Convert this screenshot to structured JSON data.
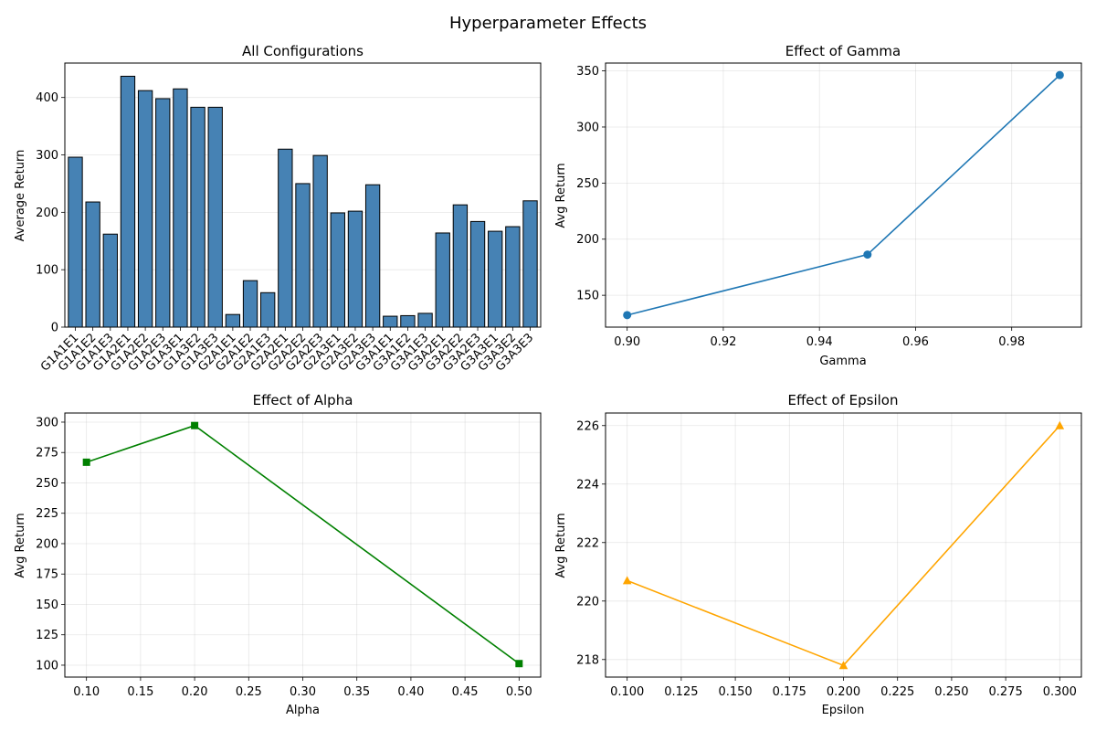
{
  "figure": {
    "title": "Hyperparameter Effects"
  },
  "chart_data": [
    {
      "type": "bar",
      "title": "All Configurations",
      "xlabel": "",
      "ylabel": "Average Return",
      "ylim": [
        0,
        460
      ],
      "yticks": [
        0,
        100,
        200,
        300,
        400
      ],
      "grid": "y",
      "bar_color": "#4682b4",
      "categories": [
        "G1A1E1",
        "G1A1E2",
        "G1A1E3",
        "G1A2E1",
        "G1A2E2",
        "G1A2E3",
        "G1A3E1",
        "G1A3E2",
        "G1A3E3",
        "G2A1E1",
        "G2A1E2",
        "G2A1E3",
        "G2A2E1",
        "G2A2E2",
        "G2A2E3",
        "G2A3E1",
        "G2A3E2",
        "G2A3E3",
        "G3A1E1",
        "G3A1E2",
        "G3A1E3",
        "G3A2E1",
        "G3A2E2",
        "G3A2E3",
        "G3A3E1",
        "G3A3E2",
        "G3A3E3"
      ],
      "values": [
        296,
        218,
        162,
        437,
        412,
        398,
        415,
        383,
        383,
        22,
        81,
        60,
        310,
        250,
        299,
        199,
        202,
        248,
        19,
        20,
        24,
        164,
        213,
        184,
        167,
        175,
        220
      ]
    },
    {
      "type": "line",
      "title": "Effect of Gamma",
      "xlabel": "Gamma",
      "ylabel": "Avg Return",
      "xlim": [
        0.8955,
        0.9945
      ],
      "ylim": [
        121.6,
        357.0
      ],
      "xticks": [
        0.9,
        0.92,
        0.94,
        0.96,
        0.98
      ],
      "xtick_decimals": 2,
      "yticks": [
        150,
        200,
        250,
        300,
        350
      ],
      "ytick_decimals": 0,
      "grid": "both",
      "color": "#1f77b4",
      "marker": "circle",
      "x": [
        0.9,
        0.95,
        0.99
      ],
      "y": [
        132.3,
        186.3,
        346.3
      ]
    },
    {
      "type": "line",
      "title": "Effect of Alpha",
      "xlabel": "Alpha",
      "ylabel": "Avg Return",
      "xlim": [
        0.08,
        0.52
      ],
      "ylim": [
        90.2,
        307.5
      ],
      "xticks": [
        0.1,
        0.15,
        0.2,
        0.25,
        0.3,
        0.35,
        0.4,
        0.45,
        0.5
      ],
      "xtick_decimals": 2,
      "yticks": [
        100,
        125,
        150,
        175,
        200,
        225,
        250,
        275,
        300
      ],
      "ytick_decimals": 0,
      "grid": "both",
      "color": "#008000",
      "marker": "square",
      "x": [
        0.1,
        0.2,
        0.5
      ],
      "y": [
        267.0,
        297.2,
        101.3
      ]
    },
    {
      "type": "line",
      "title": "Effect of Epsilon",
      "xlabel": "Epsilon",
      "ylabel": "Avg Return",
      "xlim": [
        0.09,
        0.31
      ],
      "ylim": [
        217.4,
        226.43
      ],
      "xticks": [
        0.1,
        0.125,
        0.15,
        0.175,
        0.2,
        0.225,
        0.25,
        0.275,
        0.3
      ],
      "xtick_decimals": 3,
      "yticks": [
        218,
        220,
        222,
        224,
        226
      ],
      "ytick_decimals": 0,
      "grid": "both",
      "color": "#ffa500",
      "marker": "triangle",
      "x": [
        0.1,
        0.2,
        0.3
      ],
      "y": [
        220.7,
        217.8,
        226.0
      ]
    }
  ]
}
